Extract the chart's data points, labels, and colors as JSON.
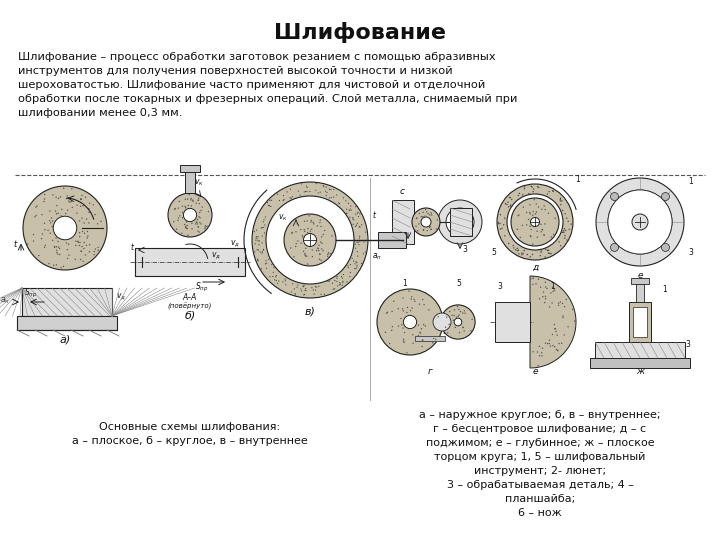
{
  "title": "Шлифование",
  "title_fontsize": 16,
  "body_text": "Шлифование – процесс обработки заготовок резанием с помощью абразивных\nинструментов для получения поверхностей высокой точности и низкой\nшероховатостью. Шлифование часто применяют для чистовой и отделочной\nобработки после токарных и фрезерных операций. Слой металла, снимаемый при\nшлифовании менее 0,3 мм.",
  "caption_left": "Основные схемы шлифования:\nа – плоское, б – круглое, в – внутреннее",
  "caption_right": "а – наружное круглое; б, в – внутреннее;\nг – бесцентровое шлифование; д – с\nподжимом; е – глубинное; ж – плоское\nторцом круга; 1, 5 – шлифовальный\nинструмент; 2- люнет;\n3 – обрабатываемая деталь; 4 –\nпланшайба;\n6 – нож",
  "bg_color": "#ffffff",
  "text_color": "#111111",
  "divider_color": "#555555",
  "body_fontsize": 8.2,
  "caption_fontsize": 8.0,
  "abrasive_color": "#c8c0a8",
  "workpiece_color": "#e0e0e0",
  "line_color": "#222222"
}
